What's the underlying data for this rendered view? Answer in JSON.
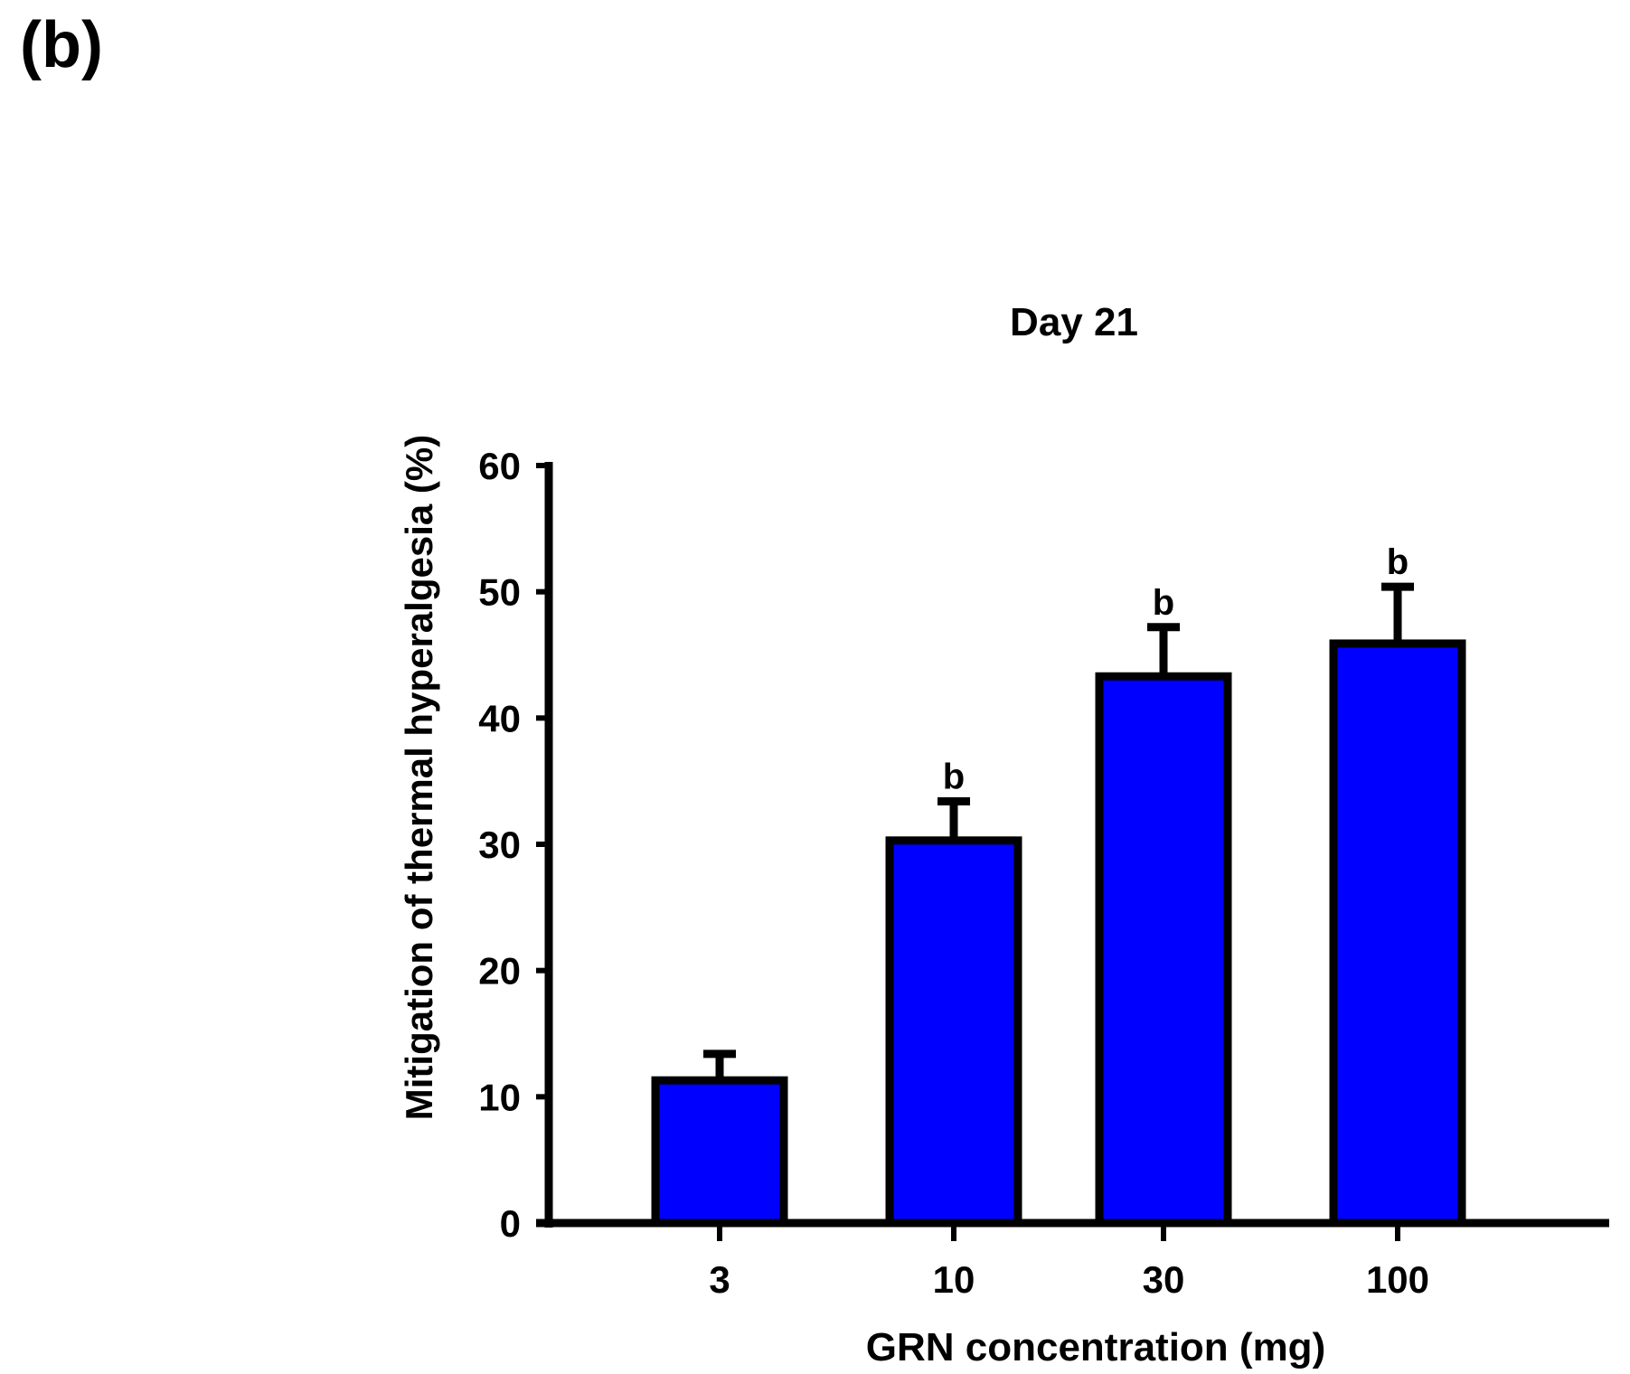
{
  "panel_label": "(b)",
  "chart_data": {
    "type": "bar",
    "title": "Day 21",
    "xlabel": "GRN concentration (mg)",
    "ylabel": "Mitigation of thermal hyperalgesia (%)",
    "categories": [
      "3",
      "10",
      "30",
      "100"
    ],
    "values": [
      11.3,
      30.3,
      43.3,
      45.9
    ],
    "errors": [
      2.1,
      3.1,
      3.9,
      4.5
    ],
    "annotations": [
      "",
      "b",
      "b",
      "b"
    ],
    "ylim": [
      0,
      60
    ],
    "yticks": [
      0,
      10,
      20,
      30,
      40,
      50,
      60
    ],
    "bar_color": "#0000ff",
    "edge_color": "#000000"
  }
}
